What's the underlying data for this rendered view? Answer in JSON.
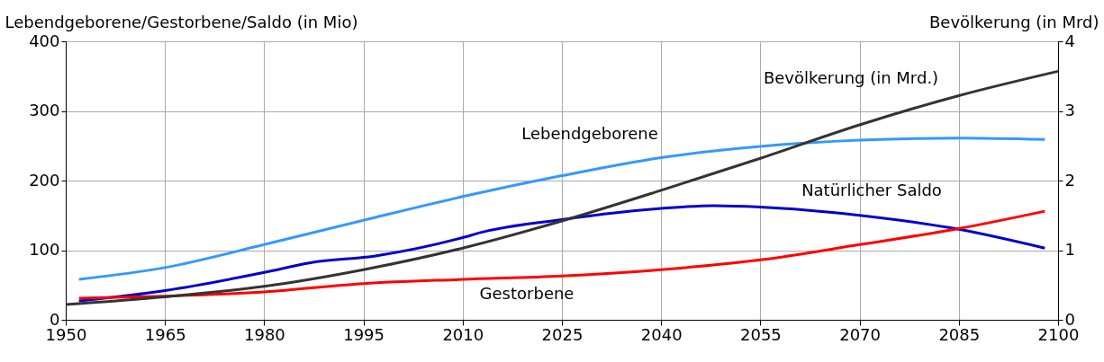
{
  "chart_data": {
    "type": "line",
    "ylabel": "Lebendgeborene/Gestorbene/Saldo (in Mio)",
    "y2label": "Bevölkerung (in Mrd)",
    "xlim": [
      1950,
      2100
    ],
    "xticks": [
      1950,
      1965,
      1980,
      1995,
      2010,
      2025,
      2040,
      2055,
      2070,
      2085,
      2100
    ],
    "ylim": [
      0,
      400
    ],
    "yticks": [
      0,
      100,
      200,
      300,
      400
    ],
    "y2lim": [
      0,
      4
    ],
    "y2ticks": [
      0,
      1,
      2,
      3,
      4
    ],
    "grid": true,
    "legend": false,
    "line_style": "solid",
    "series": [
      {
        "name": "Lebendgeborene",
        "color": "#3399ff",
        "x": [
          1952,
          1965,
          1980,
          1995,
          2010,
          2025,
          2040,
          2055,
          2070,
          2085,
          2098
        ],
        "values": [
          58,
          75,
          108,
          143,
          177,
          207,
          233,
          249,
          258,
          261,
          259
        ]
      },
      {
        "name": "Natürlicher Saldo",
        "color": "#0000cc",
        "x": [
          1952,
          1965,
          1980,
          1987,
          1997,
          2010,
          2013,
          2025,
          2040,
          2048,
          2055,
          2070,
          2085,
          2098
        ],
        "values": [
          27,
          42,
          68,
          82,
          92,
          118,
          126,
          144,
          160,
          164,
          162,
          150,
          130,
          103
        ]
      },
      {
        "name": "Gestorbene",
        "color": "#ff0000",
        "x": [
          1952,
          1965,
          1980,
          1995,
          2010,
          2025,
          2040,
          2055,
          2070,
          2085,
          2098
        ],
        "values": [
          31,
          34,
          40,
          52,
          58,
          63,
          72,
          86,
          108,
          131,
          156
        ]
      },
      {
        "name": "Bevölkerung (in Mrd.)",
        "color": "#333333",
        "axis": "y2",
        "x": [
          1950,
          1965,
          1980,
          1995,
          2010,
          2025,
          2040,
          2055,
          2070,
          2085,
          2100
        ],
        "values": [
          0.22,
          0.33,
          0.48,
          0.72,
          1.03,
          1.42,
          1.86,
          2.32,
          2.8,
          3.22,
          3.57
        ]
      }
    ]
  }
}
